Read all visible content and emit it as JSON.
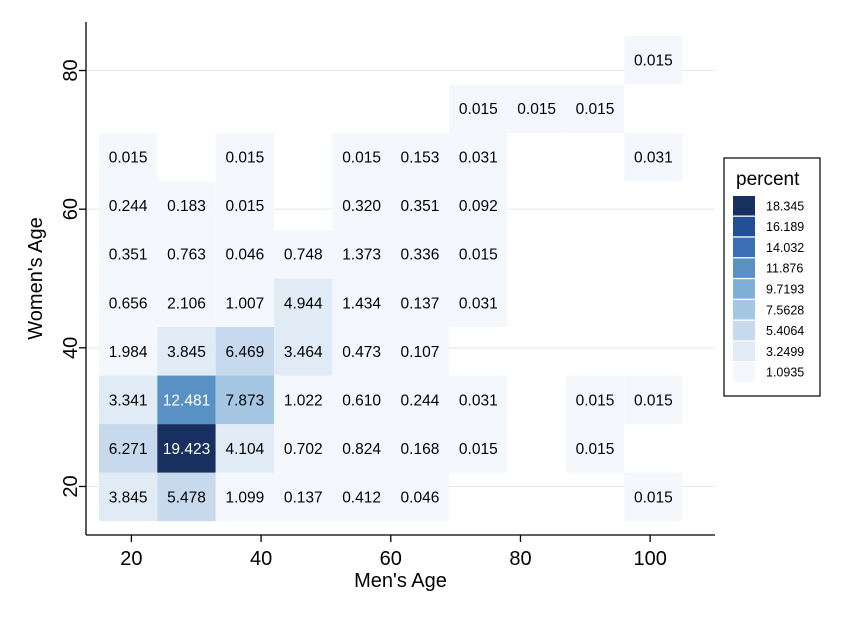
{
  "chart_data": {
    "type": "heatmap",
    "xlabel": "Men's Age",
    "ylabel": "Women's Age",
    "x_ticks": [
      20,
      40,
      60,
      80,
      100
    ],
    "y_ticks": [
      20,
      40,
      60,
      80
    ],
    "xlim": [
      13,
      110
    ],
    "ylim": [
      13,
      87
    ],
    "bin_width": 9,
    "bin_height": 7,
    "x_bins": [
      19.5,
      28.5,
      37.5,
      46.5,
      55.5,
      64.5,
      73.5,
      82.5,
      91.5,
      100.5
    ],
    "y_bins": [
      18.5,
      25.5,
      32.5,
      39.5,
      46.5,
      53.5,
      60.5,
      67.5,
      74.5,
      81.5
    ],
    "cells": [
      {
        "x": 19.5,
        "y": 18.5,
        "value": "3.845"
      },
      {
        "x": 28.5,
        "y": 18.5,
        "value": "5.478"
      },
      {
        "x": 37.5,
        "y": 18.5,
        "value": "1.099"
      },
      {
        "x": 46.5,
        "y": 18.5,
        "value": "0.137"
      },
      {
        "x": 55.5,
        "y": 18.5,
        "value": "0.412"
      },
      {
        "x": 64.5,
        "y": 18.5,
        "value": "0.046"
      },
      {
        "x": 100.5,
        "y": 18.5,
        "value": "0.015"
      },
      {
        "x": 19.5,
        "y": 25.5,
        "value": "6.271"
      },
      {
        "x": 28.5,
        "y": 25.5,
        "value": "19.423"
      },
      {
        "x": 37.5,
        "y": 25.5,
        "value": "4.104"
      },
      {
        "x": 46.5,
        "y": 25.5,
        "value": "0.702"
      },
      {
        "x": 55.5,
        "y": 25.5,
        "value": "0.824"
      },
      {
        "x": 64.5,
        "y": 25.5,
        "value": "0.168"
      },
      {
        "x": 73.5,
        "y": 25.5,
        "value": "0.015"
      },
      {
        "x": 91.5,
        "y": 25.5,
        "value": "0.015"
      },
      {
        "x": 19.5,
        "y": 32.5,
        "value": "3.341"
      },
      {
        "x": 28.5,
        "y": 32.5,
        "value": "12.481"
      },
      {
        "x": 37.5,
        "y": 32.5,
        "value": "7.873"
      },
      {
        "x": 46.5,
        "y": 32.5,
        "value": "1.022"
      },
      {
        "x": 55.5,
        "y": 32.5,
        "value": "0.610"
      },
      {
        "x": 64.5,
        "y": 32.5,
        "value": "0.244"
      },
      {
        "x": 73.5,
        "y": 32.5,
        "value": "0.031"
      },
      {
        "x": 91.5,
        "y": 32.5,
        "value": "0.015"
      },
      {
        "x": 100.5,
        "y": 32.5,
        "value": "0.015"
      },
      {
        "x": 19.5,
        "y": 39.5,
        "value": "1.984"
      },
      {
        "x": 28.5,
        "y": 39.5,
        "value": "3.845"
      },
      {
        "x": 37.5,
        "y": 39.5,
        "value": "6.469"
      },
      {
        "x": 46.5,
        "y": 39.5,
        "value": "3.464"
      },
      {
        "x": 55.5,
        "y": 39.5,
        "value": "0.473"
      },
      {
        "x": 64.5,
        "y": 39.5,
        "value": "0.107"
      },
      {
        "x": 19.5,
        "y": 46.5,
        "value": "0.656"
      },
      {
        "x": 28.5,
        "y": 46.5,
        "value": "2.106"
      },
      {
        "x": 37.5,
        "y": 46.5,
        "value": "1.007"
      },
      {
        "x": 46.5,
        "y": 46.5,
        "value": "4.944"
      },
      {
        "x": 55.5,
        "y": 46.5,
        "value": "1.434"
      },
      {
        "x": 64.5,
        "y": 46.5,
        "value": "0.137"
      },
      {
        "x": 73.5,
        "y": 46.5,
        "value": "0.031"
      },
      {
        "x": 19.5,
        "y": 53.5,
        "value": "0.351"
      },
      {
        "x": 28.5,
        "y": 53.5,
        "value": "0.763"
      },
      {
        "x": 37.5,
        "y": 53.5,
        "value": "0.046"
      },
      {
        "x": 46.5,
        "y": 53.5,
        "value": "0.748"
      },
      {
        "x": 55.5,
        "y": 53.5,
        "value": "1.373"
      },
      {
        "x": 64.5,
        "y": 53.5,
        "value": "0.336"
      },
      {
        "x": 73.5,
        "y": 53.5,
        "value": "0.015"
      },
      {
        "x": 19.5,
        "y": 60.5,
        "value": "0.244"
      },
      {
        "x": 28.5,
        "y": 60.5,
        "value": "0.183"
      },
      {
        "x": 37.5,
        "y": 60.5,
        "value": "0.015"
      },
      {
        "x": 55.5,
        "y": 60.5,
        "value": "0.320"
      },
      {
        "x": 64.5,
        "y": 60.5,
        "value": "0.351"
      },
      {
        "x": 73.5,
        "y": 60.5,
        "value": "0.092"
      },
      {
        "x": 19.5,
        "y": 67.5,
        "value": "0.015"
      },
      {
        "x": 37.5,
        "y": 67.5,
        "value": "0.015"
      },
      {
        "x": 55.5,
        "y": 67.5,
        "value": "0.015"
      },
      {
        "x": 64.5,
        "y": 67.5,
        "value": "0.153"
      },
      {
        "x": 73.5,
        "y": 67.5,
        "value": "0.031"
      },
      {
        "x": 100.5,
        "y": 67.5,
        "value": "0.031"
      },
      {
        "x": 73.5,
        "y": 74.5,
        "value": "0.015"
      },
      {
        "x": 82.5,
        "y": 74.5,
        "value": "0.015"
      },
      {
        "x": 91.5,
        "y": 74.5,
        "value": "0.015"
      },
      {
        "x": 100.5,
        "y": 81.5,
        "value": "0.015"
      }
    ],
    "legend": {
      "title": "percent",
      "placement": "right",
      "breaks": [
        "18.345",
        "16.189",
        "14.032",
        "11.876",
        "9.7193",
        "7.5628",
        "5.4064",
        "3.2499",
        "1.0935"
      ],
      "colors": [
        "#18305f",
        "#224f96",
        "#3a6fb4",
        "#5a91c4",
        "#7faed6",
        "#a6c7e4",
        "#c7d9ed",
        "#e0ebf6",
        "#f4f8fd"
      ]
    },
    "grid": "horizontal",
    "gridline_color": "#e6e6e6"
  }
}
